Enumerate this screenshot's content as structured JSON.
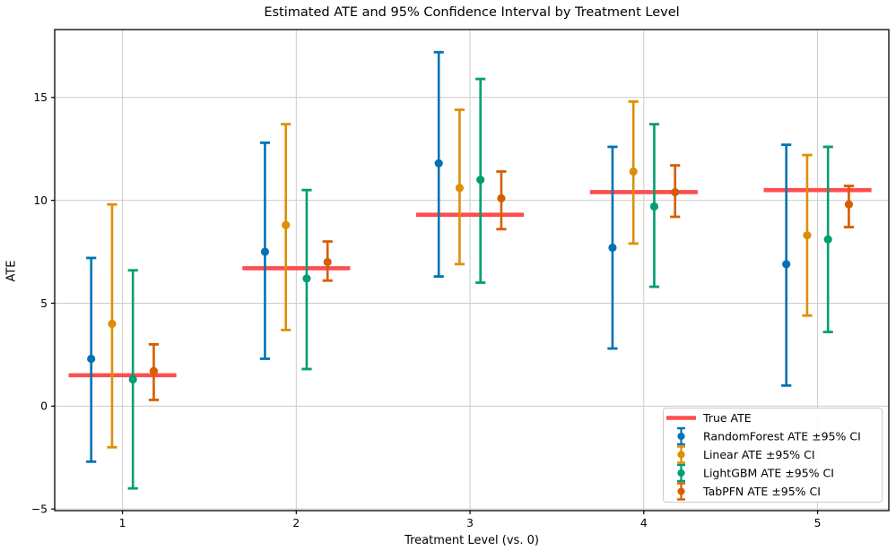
{
  "chart_data": {
    "type": "scatter",
    "error_bars": true,
    "title": "Estimated ATE and 95% Confidence Interval by Treatment Level",
    "xlabel": "Treatment Level (vs. 0)",
    "ylabel": "ATE",
    "x_ticks": [
      1,
      2,
      3,
      4,
      5
    ],
    "x_tick_labels": [
      "1",
      "2",
      "3",
      "4",
      "5"
    ],
    "y_ticks": [
      -5,
      0,
      5,
      10,
      15
    ],
    "y_tick_labels": [
      "−5",
      "0",
      "5",
      "10",
      "15"
    ],
    "xlim": [
      0.61,
      5.41
    ],
    "ylim": [
      -5.08,
      18.3
    ],
    "grid": true,
    "grid_color": "#cccccc",
    "spine_color": "#000000",
    "legend_position": "lower right",
    "legend_border_color": "#cccccc",
    "treatment_levels": [
      1,
      2,
      3,
      4,
      5
    ],
    "true_ate": {
      "label": "True ATE",
      "color": "#ff4d4d",
      "half_width": 0.31,
      "line_values": [
        1.5,
        6.7,
        9.3,
        10.4,
        10.5
      ]
    },
    "series": [
      {
        "name": "RandomForest ATE ±95% CI",
        "color": "#0173b2",
        "x_offset": -0.18,
        "ate": [
          2.3,
          7.5,
          11.8,
          7.7,
          6.9
        ],
        "ci_low": [
          -2.7,
          2.3,
          6.3,
          2.8,
          1.0
        ],
        "ci_high": [
          7.2,
          12.8,
          17.2,
          12.6,
          12.7
        ]
      },
      {
        "name": "Linear ATE ±95% CI",
        "color": "#de8f05",
        "x_offset": -0.06,
        "ate": [
          4.0,
          8.8,
          10.6,
          11.4,
          8.3
        ],
        "ci_low": [
          -2.0,
          3.7,
          6.9,
          7.9,
          4.4
        ],
        "ci_high": [
          9.8,
          13.7,
          14.4,
          14.8,
          12.2
        ]
      },
      {
        "name": "LightGBM ATE ±95% CI",
        "color": "#029e73",
        "x_offset": 0.06,
        "ate": [
          1.3,
          6.2,
          11.0,
          9.7,
          8.1
        ],
        "ci_low": [
          -4.0,
          1.8,
          6.0,
          5.8,
          3.6
        ],
        "ci_high": [
          6.6,
          10.5,
          15.9,
          13.7,
          12.6
        ]
      },
      {
        "name": "TabPFN ATE ±95% CI",
        "color": "#d55e00",
        "x_offset": 0.18,
        "ate": [
          1.7,
          7.0,
          10.1,
          10.4,
          9.8
        ],
        "ci_low": [
          0.3,
          6.1,
          8.6,
          9.2,
          8.7
        ],
        "ci_high": [
          3.0,
          8.0,
          11.4,
          11.7,
          10.7
        ]
      }
    ]
  }
}
